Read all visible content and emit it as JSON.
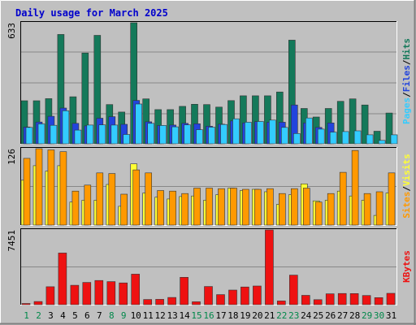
{
  "chart_data": {
    "type": "bar",
    "title": "Daily usage for March 2025",
    "days": [
      "1",
      "2",
      "3",
      "4",
      "5",
      "6",
      "7",
      "8",
      "9",
      "10",
      "11",
      "12",
      "13",
      "14",
      "15",
      "16",
      "17",
      "18",
      "19",
      "20",
      "21",
      "22",
      "23",
      "24",
      "25",
      "26",
      "27",
      "28",
      "29",
      "30",
      "31"
    ],
    "weekend_days": [
      "1",
      "2",
      "8",
      "9",
      "15",
      "16",
      "22",
      "23",
      "29",
      "30"
    ],
    "panels": [
      {
        "name": "hits-files-pages",
        "ymax": 633,
        "ymax_label": "633",
        "legend": [
          "Pages",
          "/",
          "Files",
          "/",
          "Hits"
        ],
        "series": [
          {
            "name": "Hits",
            "color": "#14795a",
            "values": [
              225,
              225,
              236,
              572,
              246,
              475,
              567,
              205,
              166,
              633,
              235,
              179,
              179,
              196,
              207,
              205,
              192,
              226,
              251,
              251,
              251,
              271,
              542,
              185,
              140,
              185,
              222,
              235,
              203,
              66,
              161
            ]
          },
          {
            "name": "Files",
            "color": "#2244dd",
            "values": [
              88,
              114,
              144,
              187,
              107,
              94,
              134,
              142,
              102,
              227,
              115,
              96,
              98,
              107,
              105,
              92,
              103,
              120,
              109,
              116,
              113,
              113,
              203,
              109,
              86,
              109,
              0,
              0,
              0,
              0,
              0
            ]
          },
          {
            "name": "Pages",
            "color": "#33ccff",
            "values": [
              86,
              104,
              97,
              173,
              72,
              98,
              99,
              98,
              49,
              208,
              107,
              96,
              89,
              99,
              74,
              87,
              101,
              131,
              113,
              117,
              124,
              86,
              54,
              135,
              77,
              61,
              64,
              68,
              47,
              18,
              47
            ]
          }
        ]
      },
      {
        "name": "visits-sites",
        "ymax": 126,
        "ymax_label": "126",
        "legend": [
          "Sites",
          "/",
          "Visits"
        ],
        "series": [
          {
            "name": "Visits",
            "color": "#ffff33",
            "values": [
              74,
              98,
              89,
              98,
              38,
              41,
              41,
              67,
              31,
              101,
              53,
              46,
              43,
              47,
              48,
              41,
              50,
              61,
              57,
              59,
              55,
              34,
              50,
              68,
              40,
              41,
              56,
              48,
              41,
              16,
              53
            ]
          },
          {
            "name": "Sites",
            "color": "#ff9900",
            "values": [
              110,
              126,
              124,
              121,
              56,
              66,
              86,
              85,
              51,
              91,
              86,
              57,
              56,
              52,
              61,
              61,
              60,
              61,
              59,
              59,
              60,
              52,
              60,
              61,
              38,
              52,
              87,
              123,
              52,
              55,
              86
            ]
          }
        ]
      },
      {
        "name": "kbytes",
        "ymax": 7451,
        "ymax_label": "7451",
        "legend": [
          "KBytes"
        ],
        "series": [
          {
            "name": "KBytes",
            "color": "#ee1111",
            "values": [
              122,
              312,
              1786,
              5150,
              1939,
              2222,
              2410,
              2300,
              2174,
              3042,
              520,
              532,
              723,
              2727,
              290,
              1812,
              1004,
              1456,
              1768,
              1860,
              7451,
              372,
              2950,
              935,
              499,
              1087,
              1121,
              1108,
              915,
              703,
              1137
            ]
          }
        ]
      }
    ]
  }
}
